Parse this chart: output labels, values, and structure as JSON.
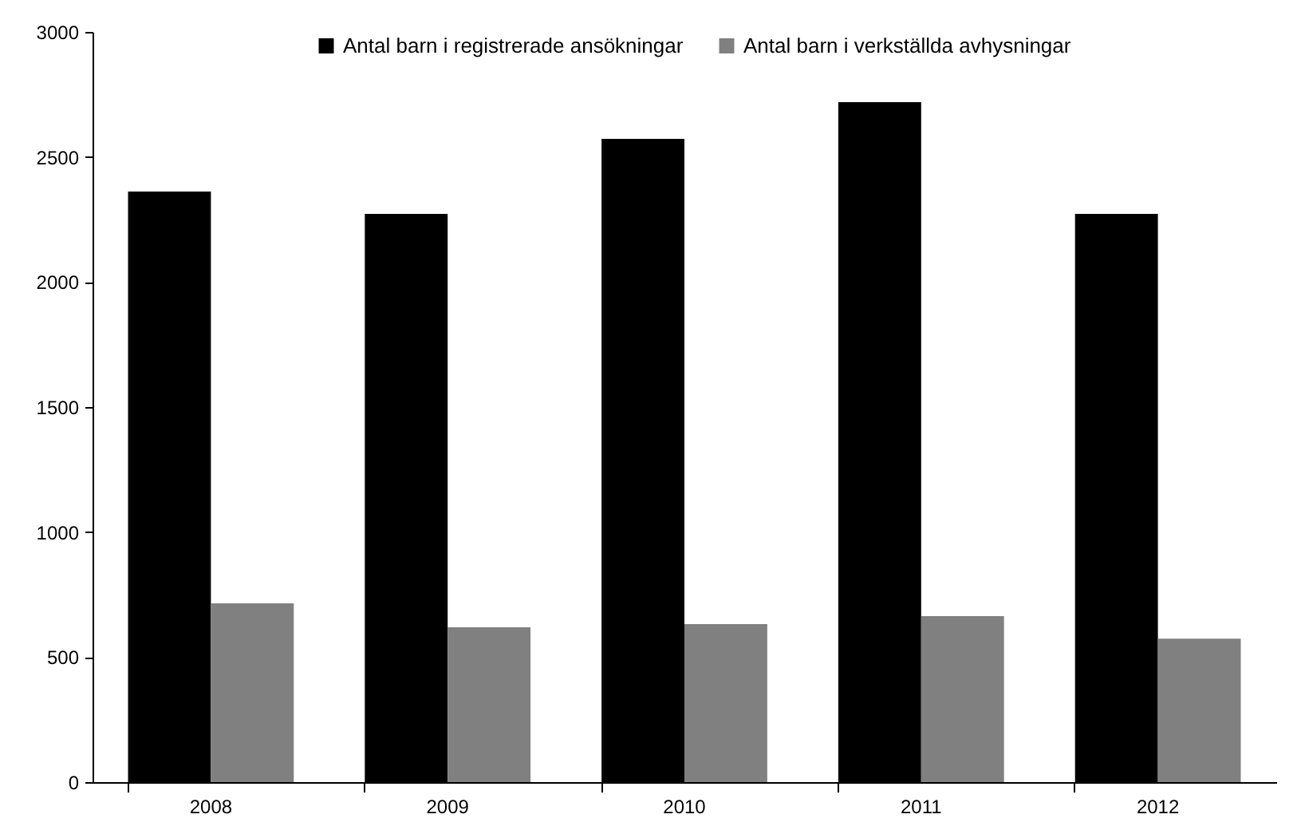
{
  "chart_data": {
    "type": "bar",
    "categories": [
      "2008",
      "2009",
      "2010",
      "2011",
      "2012"
    ],
    "series": [
      {
        "name": "Antal barn i registrerade ansökningar",
        "color": "#000000",
        "values": [
          2362,
          2272,
          2572,
          2719,
          2272
        ]
      },
      {
        "name": "Antal barn i verkställda avhysningar",
        "color": "#808080",
        "values": [
          715,
          619,
          632,
          664,
          574
        ]
      }
    ],
    "ylim": [
      0,
      3000
    ],
    "yticks": [
      0,
      500,
      1000,
      1500,
      2000,
      2500,
      3000
    ],
    "grid": false,
    "legend": "top"
  }
}
